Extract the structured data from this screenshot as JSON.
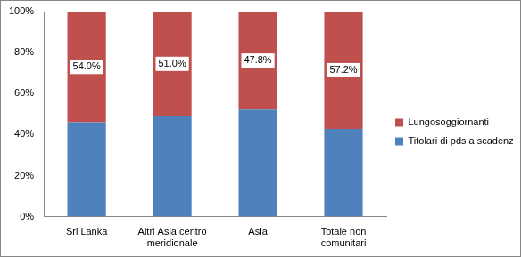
{
  "chart_data": {
    "type": "bar",
    "stacked": true,
    "categories": [
      "Sri Lanka",
      "Altri Asia centro meridionale",
      "Asia",
      "Totale non comunitari"
    ],
    "series": [
      {
        "name": "Titolari di pds a scadenza",
        "color": "#4f81bd",
        "values": [
          46.0,
          49.0,
          52.2,
          42.8
        ]
      },
      {
        "name": "Lungosoggiornanti",
        "color": "#c0504d",
        "values": [
          54.0,
          51.0,
          47.8,
          57.2
        ],
        "data_labels": true,
        "value_labels": [
          "54.0%",
          "51.0%",
          "47.8%",
          "57.2%"
        ]
      }
    ],
    "ylim": [
      0,
      100
    ],
    "yticks": [
      {
        "value": 0,
        "label": "0%"
      },
      {
        "value": 20,
        "label": "20%"
      },
      {
        "value": 40,
        "label": "40%"
      },
      {
        "value": 60,
        "label": "60%"
      },
      {
        "value": 80,
        "label": "80%"
      },
      {
        "value": 100,
        "label": "100%"
      }
    ],
    "grid": false,
    "legend": "right"
  }
}
